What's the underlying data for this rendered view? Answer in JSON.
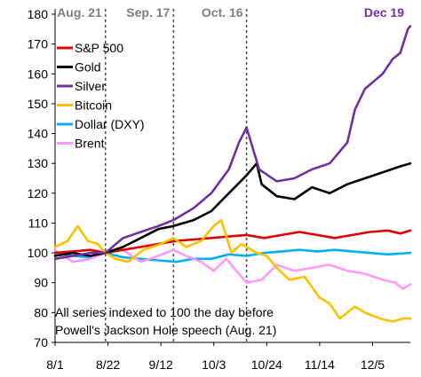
{
  "chart_data": {
    "type": "line",
    "title": "",
    "xlabel": "",
    "ylabel": "",
    "ylim": [
      70,
      180
    ],
    "yticks": [
      70,
      80,
      90,
      100,
      110,
      120,
      130,
      140,
      150,
      160,
      170,
      180
    ],
    "x_dates": [
      "Aug 1",
      "Dec 20"
    ],
    "xticks": [
      {
        "label": "8/1",
        "date": "Aug 1"
      },
      {
        "label": "8/22",
        "date": "Aug 22"
      },
      {
        "label": "9/12",
        "date": "Sep 12"
      },
      {
        "label": "10/3",
        "date": "Oct 3"
      },
      {
        "label": "10/24",
        "date": "Oct 24"
      },
      {
        "label": "11/14",
        "date": "Nov 14"
      },
      {
        "label": "12/5",
        "date": "Dec 5"
      }
    ],
    "grid": false,
    "legend_position": "top-left",
    "event_lines": [
      {
        "label": "Aug. 21",
        "date": "Aug 21",
        "label_color": "#7f7f7f"
      },
      {
        "label": "Sep. 17",
        "date": "Sep 17",
        "label_color": "#7f7f7f"
      },
      {
        "label": "Oct. 16",
        "date": "Oct 16",
        "label_color": "#7f7f7f"
      }
    ],
    "end_label": {
      "text": "Dec 19",
      "color": "#7030a0"
    },
    "note_lines": [
      "All series indexed to 100 the day before",
      "Powell's Jackson Hole speech (Aug. 21)"
    ],
    "series": [
      {
        "name": "S&P 500",
        "color": "#e00000",
        "points": [
          [
            "Aug 1",
            100
          ],
          [
            "Aug 8",
            100.5
          ],
          [
            "Aug 15",
            101
          ],
          [
            "Aug 21",
            100
          ],
          [
            "Aug 28",
            101
          ],
          [
            "Sep 4",
            102
          ],
          [
            "Sep 11",
            103
          ],
          [
            "Sep 18",
            104
          ],
          [
            "Sep 25",
            104.5
          ],
          [
            "Oct 2",
            105
          ],
          [
            "Oct 9",
            105.5
          ],
          [
            "Oct 16",
            106
          ],
          [
            "Oct 23",
            105
          ],
          [
            "Oct 30",
            106
          ],
          [
            "Nov 6",
            107
          ],
          [
            "Nov 13",
            106
          ],
          [
            "Nov 20",
            105
          ],
          [
            "Nov 27",
            106
          ],
          [
            "Dec 4",
            107
          ],
          [
            "Dec 11",
            107.5
          ],
          [
            "Dec 16",
            106.5
          ],
          [
            "Dec 20",
            107.5
          ]
        ]
      },
      {
        "name": "Gold",
        "color": "#000000",
        "points": [
          [
            "Aug 1",
            99
          ],
          [
            "Aug 8",
            100
          ],
          [
            "Aug 15",
            99
          ],
          [
            "Aug 21",
            100
          ],
          [
            "Aug 28",
            102
          ],
          [
            "Sep 4",
            105
          ],
          [
            "Sep 11",
            108
          ],
          [
            "Sep 17",
            109
          ],
          [
            "Sep 25",
            111
          ],
          [
            "Oct 2",
            114
          ],
          [
            "Oct 9",
            120
          ],
          [
            "Oct 16",
            126
          ],
          [
            "Oct 20",
            130
          ],
          [
            "Oct 22",
            123
          ],
          [
            "Oct 28",
            119
          ],
          [
            "Nov 4",
            118
          ],
          [
            "Nov 11",
            122
          ],
          [
            "Nov 18",
            120
          ],
          [
            "Nov 25",
            123
          ],
          [
            "Dec 2",
            125
          ],
          [
            "Dec 9",
            127
          ],
          [
            "Dec 16",
            129
          ],
          [
            "Dec 20",
            130
          ]
        ]
      },
      {
        "name": "Silver",
        "color": "#7030a0",
        "points": [
          [
            "Aug 1",
            98
          ],
          [
            "Aug 8",
            99
          ],
          [
            "Aug 15",
            100
          ],
          [
            "Aug 21",
            100
          ],
          [
            "Aug 28",
            105
          ],
          [
            "Sep 4",
            107
          ],
          [
            "Sep 11",
            109
          ],
          [
            "Sep 17",
            111
          ],
          [
            "Sep 25",
            115
          ],
          [
            "Oct 2",
            120
          ],
          [
            "Oct 9",
            128
          ],
          [
            "Oct 13",
            137
          ],
          [
            "Oct 16",
            142
          ],
          [
            "Oct 21",
            128
          ],
          [
            "Oct 28",
            124
          ],
          [
            "Nov 4",
            125
          ],
          [
            "Nov 11",
            128
          ],
          [
            "Nov 18",
            130
          ],
          [
            "Nov 25",
            137
          ],
          [
            "Nov 28",
            148
          ],
          [
            "Dec 2",
            155
          ],
          [
            "Dec 9",
            160
          ],
          [
            "Dec 13",
            165
          ],
          [
            "Dec 16",
            167
          ],
          [
            "Dec 19",
            175
          ],
          [
            "Dec 20",
            176
          ]
        ]
      },
      {
        "name": "Bitcoin",
        "color": "#ffc000",
        "points": [
          [
            "Aug 1",
            102
          ],
          [
            "Aug 6",
            104
          ],
          [
            "Aug 10",
            109
          ],
          [
            "Aug 14",
            104
          ],
          [
            "Aug 18",
            103
          ],
          [
            "Aug 21",
            100
          ],
          [
            "Aug 25",
            98
          ],
          [
            "Aug 30",
            97
          ],
          [
            "Sep 5",
            101
          ],
          [
            "Sep 12",
            103
          ],
          [
            "Sep 17",
            105
          ],
          [
            "Sep 22",
            102
          ],
          [
            "Sep 28",
            104
          ],
          [
            "Oct 3",
            109
          ],
          [
            "Oct 6",
            111
          ],
          [
            "Oct 10",
            100
          ],
          [
            "Oct 14",
            103
          ],
          [
            "Oct 20",
            100
          ],
          [
            "Oct 24",
            99
          ],
          [
            "Oct 28",
            95
          ],
          [
            "Nov 2",
            91
          ],
          [
            "Nov 8",
            92
          ],
          [
            "Nov 14",
            85
          ],
          [
            "Nov 18",
            83
          ],
          [
            "Nov 22",
            78
          ],
          [
            "Nov 28",
            82
          ],
          [
            "Dec 2",
            80
          ],
          [
            "Dec 8",
            78
          ],
          [
            "Dec 13",
            77
          ],
          [
            "Dec 17",
            78
          ],
          [
            "Dec 20",
            78
          ]
        ]
      },
      {
        "name": "Dollar (DXY)",
        "color": "#00b0f0",
        "points": [
          [
            "Aug 1",
            100
          ],
          [
            "Aug 8",
            99
          ],
          [
            "Aug 15",
            98.5
          ],
          [
            "Aug 21",
            100
          ],
          [
            "Aug 28",
            98.5
          ],
          [
            "Sep 4",
            98
          ],
          [
            "Sep 11",
            97.5
          ],
          [
            "Sep 18",
            97
          ],
          [
            "Sep 25",
            98
          ],
          [
            "Oct 2",
            98
          ],
          [
            "Oct 9",
            99.5
          ],
          [
            "Oct 16",
            99
          ],
          [
            "Oct 23",
            100
          ],
          [
            "Oct 30",
            100.5
          ],
          [
            "Nov 6",
            101
          ],
          [
            "Nov 13",
            100.5
          ],
          [
            "Nov 20",
            101
          ],
          [
            "Nov 27",
            100.5
          ],
          [
            "Dec 4",
            100
          ],
          [
            "Dec 11",
            99.5
          ],
          [
            "Dec 20",
            100
          ]
        ]
      },
      {
        "name": "Brent",
        "color": "#ff99ff",
        "points": [
          [
            "Aug 1",
            101
          ],
          [
            "Aug 8",
            97
          ],
          [
            "Aug 15",
            98
          ],
          [
            "Aug 21",
            100
          ],
          [
            "Aug 28",
            101
          ],
          [
            "Sep 4",
            97
          ],
          [
            "Sep 11",
            99
          ],
          [
            "Sep 17",
            101
          ],
          [
            "Sep 22",
            99
          ],
          [
            "Sep 28",
            97
          ],
          [
            "Oct 3",
            94
          ],
          [
            "Oct 8",
            98
          ],
          [
            "Oct 13",
            93
          ],
          [
            "Oct 16",
            90
          ],
          [
            "Oct 22",
            91
          ],
          [
            "Oct 28",
            96
          ],
          [
            "Nov 4",
            94
          ],
          [
            "Nov 11",
            95
          ],
          [
            "Nov 18",
            96
          ],
          [
            "Nov 25",
            94
          ],
          [
            "Dec 2",
            93
          ],
          [
            "Dec 9",
            91
          ],
          [
            "Dec 14",
            90
          ],
          [
            "Dec 17",
            88
          ],
          [
            "Dec 20",
            89.5
          ]
        ]
      }
    ]
  }
}
